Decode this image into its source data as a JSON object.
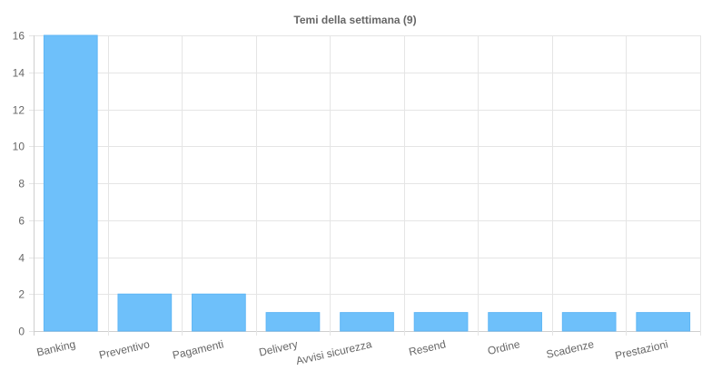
{
  "chart_data": {
    "type": "bar",
    "title": "Temi della settimana (9)",
    "categories": [
      "Banking",
      "Preventivo",
      "Pagamenti",
      "Delivery",
      "Avvisi sicurezza",
      "Resend",
      "Ordine",
      "Scadenze",
      "Prestazioni"
    ],
    "values": [
      16,
      2,
      2,
      1,
      1,
      1,
      1,
      1,
      1
    ],
    "ylim": [
      0,
      16
    ],
    "yticks": [
      0,
      2,
      4,
      6,
      8,
      10,
      12,
      14,
      16
    ],
    "xlabel": "",
    "ylabel": "",
    "grid": true,
    "legend": "none",
    "colors": {
      "bar": "#6ec0fa",
      "bar_border": "#5fb6f5",
      "grid": "#e5e5e5",
      "text": "#666666"
    }
  }
}
